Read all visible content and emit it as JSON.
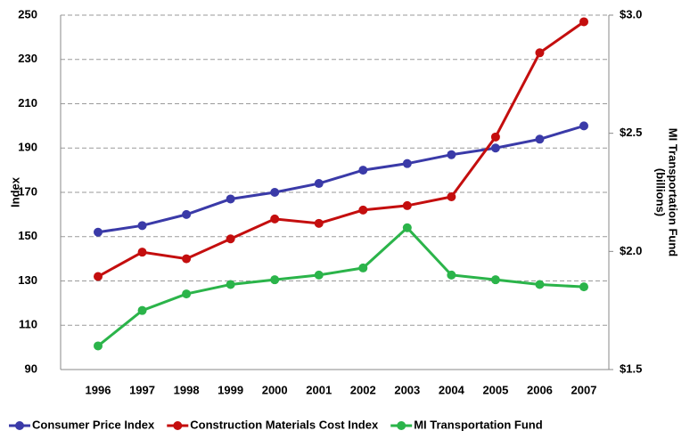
{
  "chart_data": {
    "type": "line",
    "categories": [
      "1996",
      "1997",
      "1998",
      "1999",
      "2000",
      "2001",
      "2002",
      "2003",
      "2004",
      "2005",
      "2006",
      "2007"
    ],
    "ylabel": "Index",
    "y2label": [
      "MI Transportation Fund",
      "(billions)"
    ],
    "ylim": [
      90,
      250
    ],
    "yticks": [
      90,
      110,
      130,
      150,
      170,
      190,
      210,
      230,
      250
    ],
    "y2lim": [
      1.5,
      3.0
    ],
    "y2ticks": [
      {
        "value": 1.5,
        "label": "$1.5"
      },
      {
        "value": 2.0,
        "label": "$2.0"
      },
      {
        "value": 2.5,
        "label": "$2.5"
      },
      {
        "value": 3.0,
        "label": "$3.0"
      }
    ],
    "grid": true,
    "legend": "bottom",
    "series": [
      {
        "name": "Consumer Price Index",
        "color": "#3a3aa8",
        "values": [
          152,
          155,
          160,
          167,
          170,
          174,
          180,
          183,
          187,
          190,
          194,
          200
        ]
      },
      {
        "name": "Construction Materials Cost Index",
        "color": "#c40e0e",
        "values": [
          132,
          143,
          140,
          149,
          158,
          156,
          162,
          164,
          168,
          195,
          233,
          247
        ]
      },
      {
        "name": "MI Transportation Fund",
        "color": "#2bb44a",
        "axis": "y2",
        "values": [
          1.6,
          1.75,
          1.82,
          1.86,
          1.88,
          1.9,
          1.93,
          2.1,
          1.9,
          1.88,
          1.86,
          1.85
        ]
      }
    ]
  }
}
